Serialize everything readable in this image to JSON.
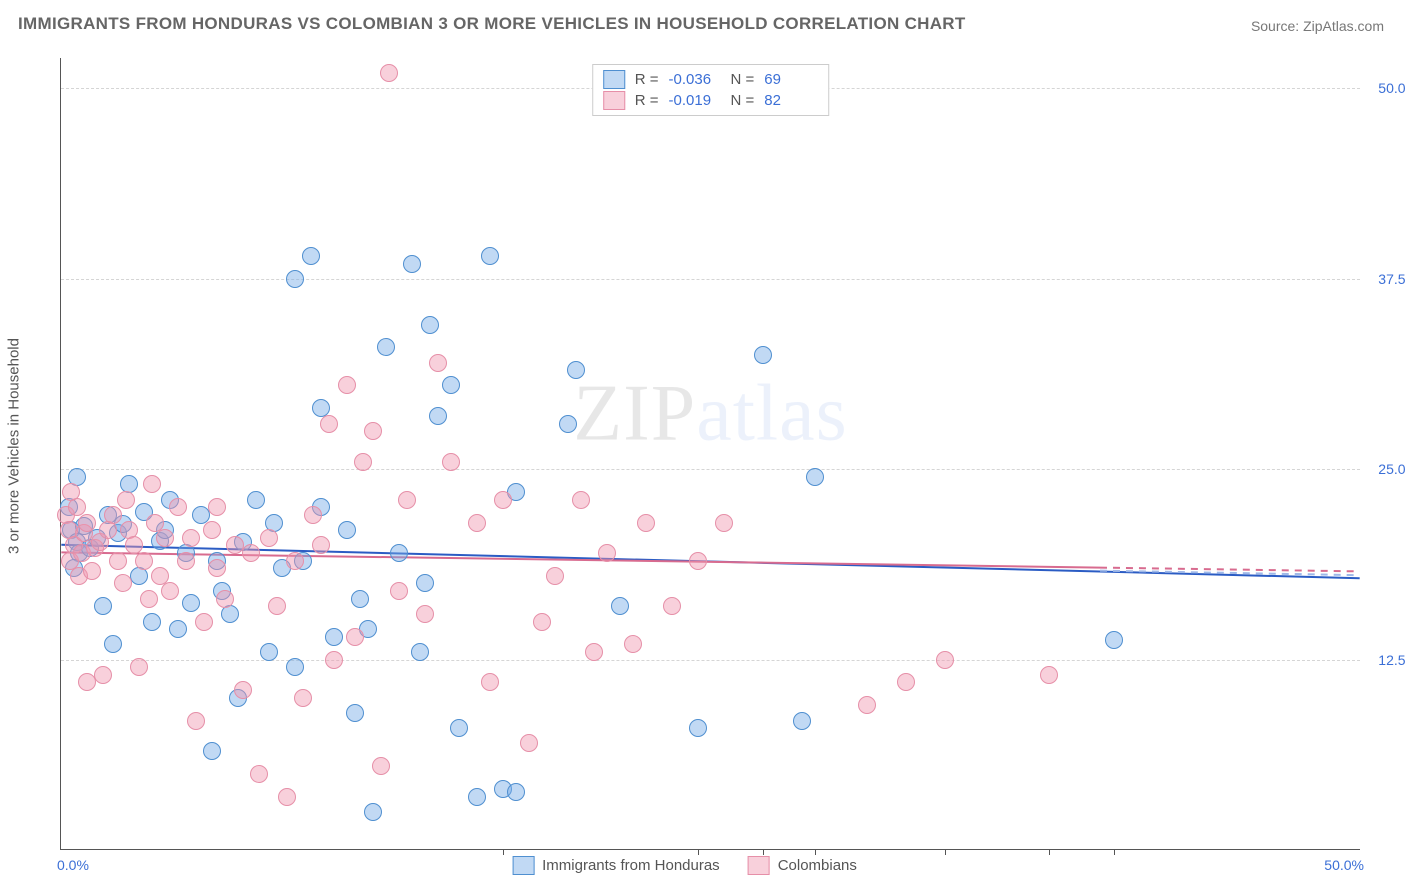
{
  "title": "IMMIGRANTS FROM HONDURAS VS COLOMBIAN 3 OR MORE VEHICLES IN HOUSEHOLD CORRELATION CHART",
  "source": "Source: ZipAtlas.com",
  "ylabel": "3 or more Vehicles in Household",
  "watermark_parts": [
    "ZIP",
    "atlas"
  ],
  "chart": {
    "type": "scatter",
    "xlim": [
      0,
      50
    ],
    "ylim": [
      0,
      52
    ],
    "background_color": "#ffffff",
    "grid_color": "#d5d5d5",
    "axis_color": "#555555",
    "tick_color": "#3b6fd6",
    "yticks": [
      {
        "v": 12.5,
        "label": "12.5%"
      },
      {
        "v": 25,
        "label": "25.0%"
      },
      {
        "v": 37.5,
        "label": "37.5%"
      },
      {
        "v": 50,
        "label": "50.0%"
      }
    ],
    "x_left_label": "0.0%",
    "x_right_label": "50.0%",
    "x_inner_ticks": [
      17.0,
      24.5,
      27.0,
      29.0,
      34.0,
      38.0,
      40.5
    ],
    "marker_radius": 9,
    "series": [
      {
        "id": "honduras",
        "name": "Immigrants from Honduras",
        "fill": "rgba(118,170,230,0.45)",
        "stroke": "#4f8fd0",
        "R": "-0.036",
        "N": "69",
        "trend": {
          "x0": 0,
          "y0": 20.0,
          "x1": 50,
          "y1": 17.8,
          "dash": false,
          "color": "#2b5cc4",
          "width": 2
        },
        "trend_ext": {
          "x0": 50,
          "y0": 17.8,
          "x1": 50,
          "y1": 17.8
        },
        "points": [
          [
            0.3,
            22.5
          ],
          [
            0.4,
            21.0
          ],
          [
            0.6,
            20.2
          ],
          [
            0.7,
            19.5
          ],
          [
            0.6,
            24.5
          ],
          [
            0.9,
            21.3
          ],
          [
            1.1,
            19.8
          ],
          [
            0.5,
            18.5
          ],
          [
            1.4,
            20.5
          ],
          [
            1.6,
            16.0
          ],
          [
            1.8,
            22.0
          ],
          [
            2.0,
            13.5
          ],
          [
            2.2,
            20.8
          ],
          [
            2.4,
            21.4
          ],
          [
            2.6,
            24.0
          ],
          [
            3.0,
            18.0
          ],
          [
            3.2,
            22.2
          ],
          [
            3.5,
            15.0
          ],
          [
            3.8,
            20.3
          ],
          [
            4.0,
            21.0
          ],
          [
            4.2,
            23.0
          ],
          [
            4.5,
            14.5
          ],
          [
            4.8,
            19.5
          ],
          [
            5.0,
            16.2
          ],
          [
            5.4,
            22.0
          ],
          [
            5.8,
            6.5
          ],
          [
            6.0,
            19.0
          ],
          [
            6.2,
            17.0
          ],
          [
            6.5,
            15.5
          ],
          [
            7.0,
            20.2
          ],
          [
            7.5,
            23.0
          ],
          [
            8.0,
            13.0
          ],
          [
            8.5,
            18.5
          ],
          [
            9.0,
            37.5
          ],
          [
            9.3,
            19.0
          ],
          [
            9.6,
            39.0
          ],
          [
            10.0,
            29.0
          ],
          [
            10.5,
            14.0
          ],
          [
            11.0,
            21.0
          ],
          [
            11.3,
            9.0
          ],
          [
            11.8,
            14.5
          ],
          [
            12.0,
            2.5
          ],
          [
            12.5,
            33.0
          ],
          [
            13.0,
            19.5
          ],
          [
            13.5,
            38.5
          ],
          [
            13.8,
            13.0
          ],
          [
            14.2,
            34.5
          ],
          [
            14.5,
            28.5
          ],
          [
            15.0,
            30.5
          ],
          [
            15.3,
            8.0
          ],
          [
            16.0,
            3.5
          ],
          [
            16.5,
            39.0
          ],
          [
            17.0,
            4.0
          ],
          [
            17.5,
            3.8
          ],
          [
            19.5,
            28.0
          ],
          [
            19.8,
            31.5
          ],
          [
            21.5,
            16.0
          ],
          [
            24.5,
            8.0
          ],
          [
            27.0,
            32.5
          ],
          [
            29.0,
            24.5
          ],
          [
            28.5,
            8.5
          ],
          [
            40.5,
            13.8
          ],
          [
            17.5,
            23.5
          ],
          [
            9.0,
            12.0
          ],
          [
            10.0,
            22.5
          ],
          [
            11.5,
            16.5
          ],
          [
            6.8,
            10.0
          ],
          [
            8.2,
            21.5
          ],
          [
            14.0,
            17.5
          ]
        ]
      },
      {
        "id": "colombians",
        "name": "Colombians",
        "fill": "rgba(240,150,175,0.45)",
        "stroke": "#e68fa8",
        "R": "-0.019",
        "N": "82",
        "trend": {
          "x0": 0,
          "y0": 19.5,
          "x1": 40,
          "y1": 18.5,
          "dash": false,
          "color": "#d86b8f",
          "width": 2
        },
        "trend_ext": {
          "x0": 40,
          "y0": 18.5,
          "x1": 50,
          "y1": 18.25,
          "dash": true,
          "color": "#d86b8f",
          "width": 2
        },
        "points": [
          [
            0.2,
            22.0
          ],
          [
            0.3,
            21.0
          ],
          [
            0.35,
            19.0
          ],
          [
            0.5,
            20.0
          ],
          [
            0.6,
            22.5
          ],
          [
            0.7,
            18.0
          ],
          [
            0.8,
            19.5
          ],
          [
            0.9,
            20.8
          ],
          [
            1.0,
            21.5
          ],
          [
            1.2,
            18.3
          ],
          [
            1.3,
            19.8
          ],
          [
            1.5,
            20.2
          ],
          [
            1.6,
            11.5
          ],
          [
            1.8,
            21.0
          ],
          [
            2.0,
            22.0
          ],
          [
            2.2,
            19.0
          ],
          [
            2.4,
            17.5
          ],
          [
            2.6,
            21.0
          ],
          [
            2.8,
            20.0
          ],
          [
            3.0,
            12.0
          ],
          [
            3.2,
            19.0
          ],
          [
            3.4,
            16.5
          ],
          [
            3.6,
            21.5
          ],
          [
            3.8,
            18.0
          ],
          [
            4.0,
            20.5
          ],
          [
            4.2,
            17.0
          ],
          [
            4.5,
            22.5
          ],
          [
            4.8,
            19.0
          ],
          [
            5.0,
            20.5
          ],
          [
            5.5,
            15.0
          ],
          [
            5.8,
            21.0
          ],
          [
            6.0,
            18.5
          ],
          [
            6.3,
            16.5
          ],
          [
            6.7,
            20.0
          ],
          [
            7.0,
            10.5
          ],
          [
            7.3,
            19.5
          ],
          [
            7.6,
            5.0
          ],
          [
            8.0,
            20.5
          ],
          [
            8.3,
            16.0
          ],
          [
            8.7,
            3.5
          ],
          [
            9.0,
            19.0
          ],
          [
            9.3,
            10.0
          ],
          [
            9.7,
            22.0
          ],
          [
            10.0,
            20.0
          ],
          [
            10.3,
            28.0
          ],
          [
            10.5,
            12.5
          ],
          [
            11.0,
            30.5
          ],
          [
            11.3,
            14.0
          ],
          [
            11.6,
            25.5
          ],
          [
            12.0,
            27.5
          ],
          [
            12.3,
            5.5
          ],
          [
            12.6,
            51.0
          ],
          [
            13.0,
            17.0
          ],
          [
            13.3,
            23.0
          ],
          [
            14.0,
            15.5
          ],
          [
            14.5,
            32.0
          ],
          [
            15.0,
            25.5
          ],
          [
            16.0,
            21.5
          ],
          [
            16.5,
            11.0
          ],
          [
            17.0,
            23.0
          ],
          [
            18.0,
            7.0
          ],
          [
            18.5,
            15.0
          ],
          [
            19.0,
            18.0
          ],
          [
            20.0,
            23.0
          ],
          [
            20.5,
            13.0
          ],
          [
            21.0,
            19.5
          ],
          [
            22.0,
            13.5
          ],
          [
            22.5,
            21.5
          ],
          [
            23.5,
            16.0
          ],
          [
            24.5,
            19.0
          ],
          [
            25.5,
            21.5
          ],
          [
            26.5,
            49.5
          ],
          [
            31.0,
            9.5
          ],
          [
            32.5,
            11.0
          ],
          [
            34.0,
            12.5
          ],
          [
            38.0,
            11.5
          ],
          [
            5.2,
            8.5
          ],
          [
            6.0,
            22.5
          ],
          [
            2.5,
            23.0
          ],
          [
            1.0,
            11.0
          ],
          [
            3.5,
            24.0
          ],
          [
            0.4,
            23.5
          ]
        ]
      }
    ]
  }
}
